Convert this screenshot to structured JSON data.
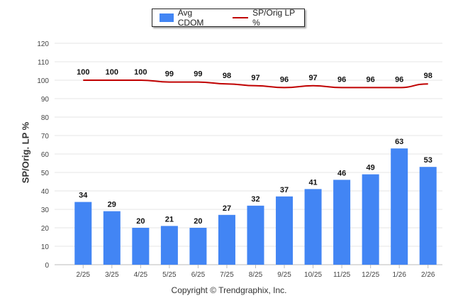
{
  "chart_data": {
    "type": "bar",
    "categories": [
      "2/25",
      "3/25",
      "4/25",
      "5/25",
      "6/25",
      "7/25",
      "8/25",
      "9/25",
      "10/25",
      "11/25",
      "12/25",
      "1/26",
      "2/26"
    ],
    "series": [
      {
        "name": "Avg CDOM",
        "type": "bar",
        "color": "#4285f4",
        "values": [
          34,
          29,
          20,
          21,
          20,
          27,
          32,
          37,
          41,
          46,
          49,
          63,
          53
        ]
      },
      {
        "name": "SP/Orig LP %",
        "type": "line",
        "color": "#c00000",
        "values": [
          100,
          100,
          100,
          99,
          99,
          98,
          97,
          96,
          97,
          96,
          96,
          96,
          98
        ]
      }
    ],
    "ylabel": "SP/Orig. LP %",
    "ylim": [
      0,
      120
    ],
    "yticks": [
      0,
      10,
      20,
      30,
      40,
      50,
      60,
      70,
      80,
      90,
      100,
      110,
      120
    ],
    "grid": true,
    "legend_position": "top-center"
  },
  "footer": "Copyright © Trendgraphix, Inc."
}
